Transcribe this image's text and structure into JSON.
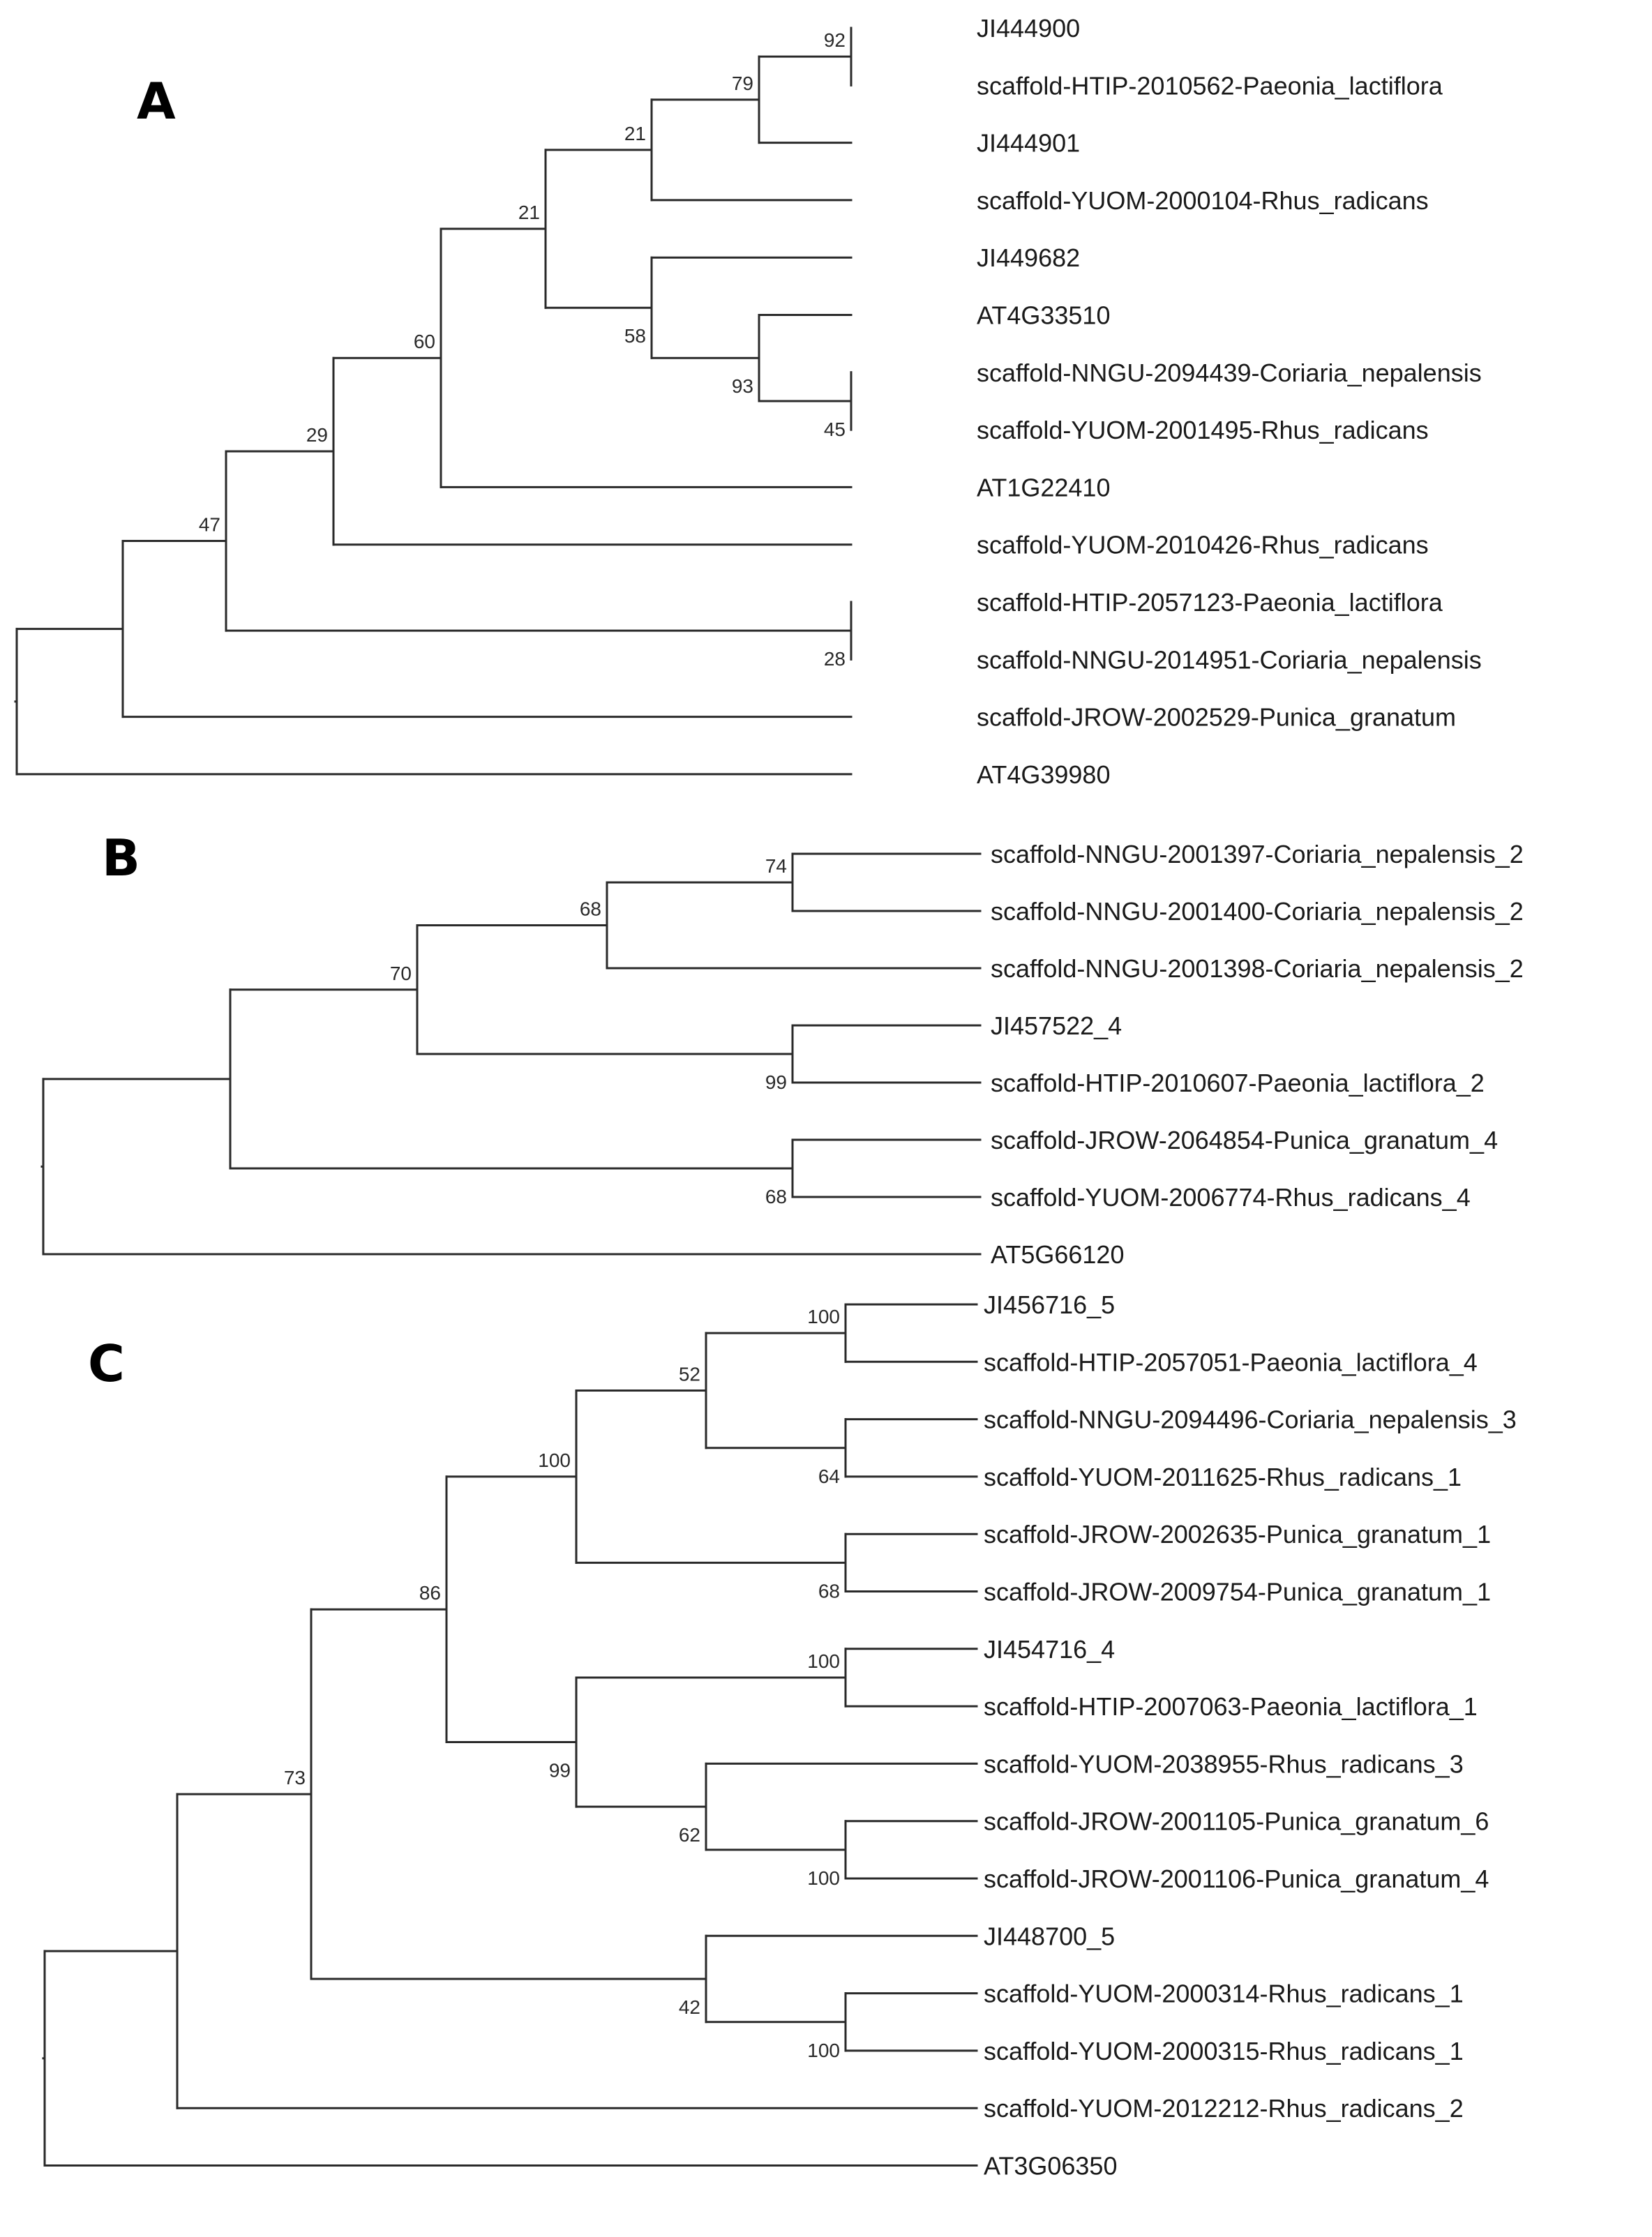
{
  "figure": {
    "panels": [
      {
        "letter": "A",
        "leaves": [
          "JI444900",
          "scaffold-HTIP-2010562-Paeonia_lactiflora",
          "JI444901",
          "scaffold-YUOM-2000104-Rhus_radicans",
          "JI449682",
          "AT4G33510",
          "scaffold-NNGU-2094439-Coriaria_nepalensis",
          "scaffold-YUOM-2001495-Rhus_radicans",
          "AT1G22410",
          "scaffold-YUOM-2010426-Rhus_radicans",
          "scaffold-HTIP-2057123-Paeonia_lactiflora",
          "scaffold-NNGU-2014951-Coriaria_nepalensis",
          "scaffold-JROW-2002529-Punica_granatum",
          "AT4G39980"
        ],
        "nodes": [
          {
            "id": "n1",
            "support": "92",
            "children": [
              "L0",
              "L1"
            ]
          },
          {
            "id": "n2",
            "support": "79",
            "children": [
              "n1",
              "L2"
            ]
          },
          {
            "id": "n3",
            "support": "21",
            "children": [
              "n2",
              "L3"
            ]
          },
          {
            "id": "n4",
            "support": "45",
            "children": [
              "L6",
              "L7"
            ]
          },
          {
            "id": "n5",
            "support": "93",
            "children": [
              "L5",
              "n4"
            ]
          },
          {
            "id": "n6",
            "support": "58",
            "children": [
              "L4",
              "n5"
            ]
          },
          {
            "id": "n7",
            "support": "21",
            "children": [
              "n3",
              "n6"
            ]
          },
          {
            "id": "n8",
            "support": "60",
            "children": [
              "n7",
              "L8"
            ]
          },
          {
            "id": "n9",
            "support": "29",
            "children": [
              "n8",
              "L9"
            ]
          },
          {
            "id": "n10",
            "support": "28",
            "children": [
              "L10",
              "L11"
            ]
          },
          {
            "id": "n11",
            "support": "47",
            "children": [
              "n9",
              "n10"
            ]
          },
          {
            "id": "n12",
            "support": "",
            "children": [
              "n11",
              "L12"
            ]
          },
          {
            "id": "n13",
            "support": "",
            "children": [
              "n12",
              "L13"
            ]
          }
        ]
      },
      {
        "letter": "B",
        "leaves": [
          "scaffold-NNGU-2001397-Coriaria_nepalensis_2",
          "scaffold-NNGU-2001400-Coriaria_nepalensis_2",
          "scaffold-NNGU-2001398-Coriaria_nepalensis_2",
          "JI457522_4",
          "scaffold-HTIP-2010607-Paeonia_lactiflora_2",
          "scaffold-JROW-2064854-Punica_granatum_4",
          "scaffold-YUOM-2006774-Rhus_radicans_4",
          "AT5G66120"
        ],
        "nodes": [
          {
            "id": "n1",
            "support": "74",
            "children": [
              "L0",
              "L1"
            ]
          },
          {
            "id": "n2",
            "support": "68",
            "children": [
              "n1",
              "L2"
            ]
          },
          {
            "id": "n3",
            "support": "99",
            "children": [
              "L3",
              "L4"
            ]
          },
          {
            "id": "n4",
            "support": "70",
            "children": [
              "n2",
              "n3"
            ]
          },
          {
            "id": "n5",
            "support": "68",
            "children": [
              "L5",
              "L6"
            ]
          },
          {
            "id": "n6",
            "support": "",
            "children": [
              "n4",
              "n5"
            ]
          },
          {
            "id": "n7",
            "support": "",
            "children": [
              "n6",
              "L7"
            ]
          }
        ]
      },
      {
        "letter": "C",
        "leaves": [
          "JI456716_5",
          "scaffold-HTIP-2057051-Paeonia_lactiflora_4",
          "scaffold-NNGU-2094496-Coriaria_nepalensis_3",
          "scaffold-YUOM-2011625-Rhus_radicans_1",
          "scaffold-JROW-2002635-Punica_granatum_1",
          "scaffold-JROW-2009754-Punica_granatum_1",
          "JI454716_4",
          "scaffold-HTIP-2007063-Paeonia_lactiflora_1",
          "scaffold-YUOM-2038955-Rhus_radicans_3",
          "scaffold-JROW-2001105-Punica_granatum_6",
          "scaffold-JROW-2001106-Punica_granatum_4",
          "JI448700_5",
          "scaffold-YUOM-2000314-Rhus_radicans_1",
          "scaffold-YUOM-2000315-Rhus_radicans_1",
          "scaffold-YUOM-2012212-Rhus_radicans_2",
          "AT3G06350"
        ],
        "nodes": [
          {
            "id": "n1",
            "support": "100",
            "children": [
              "L0",
              "L1"
            ]
          },
          {
            "id": "n2",
            "support": "64",
            "children": [
              "L2",
              "L3"
            ]
          },
          {
            "id": "n3",
            "support": "52",
            "children": [
              "n1",
              "n2"
            ]
          },
          {
            "id": "n4",
            "support": "68",
            "children": [
              "L4",
              "L5"
            ]
          },
          {
            "id": "n5",
            "support": "100",
            "children": [
              "n3",
              "n4"
            ]
          },
          {
            "id": "n6",
            "support": "100",
            "children": [
              "L6",
              "L7"
            ]
          },
          {
            "id": "n7",
            "support": "100",
            "children": [
              "L9",
              "L10"
            ]
          },
          {
            "id": "n8",
            "support": "62",
            "children": [
              "L8",
              "n7"
            ]
          },
          {
            "id": "n9",
            "support": "99",
            "children": [
              "n6",
              "n8"
            ]
          },
          {
            "id": "n10",
            "support": "86",
            "children": [
              "n5",
              "n9"
            ]
          },
          {
            "id": "n11",
            "support": "100",
            "children": [
              "L12",
              "L13"
            ]
          },
          {
            "id": "n12",
            "support": "42",
            "children": [
              "L11",
              "n11"
            ]
          },
          {
            "id": "n13",
            "support": "73",
            "children": [
              "n10",
              "n12"
            ]
          },
          {
            "id": "n14",
            "support": "",
            "children": [
              "n13",
              "L14"
            ]
          },
          {
            "id": "n15",
            "support": "",
            "children": [
              "n14",
              "L15"
            ]
          }
        ]
      }
    ]
  }
}
